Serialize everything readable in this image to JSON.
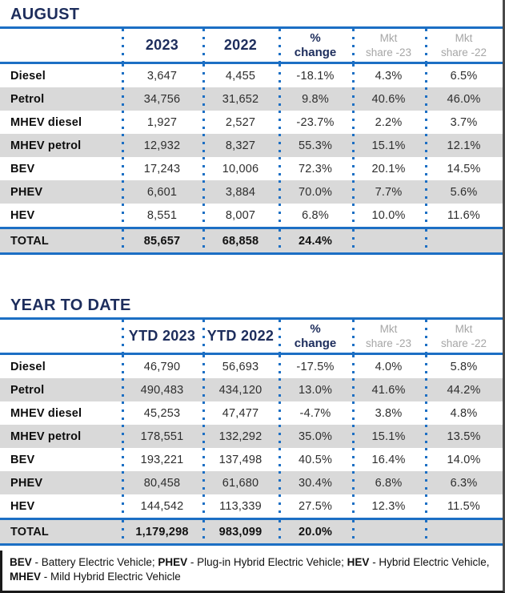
{
  "colors": {
    "accent_blue": "#1c6fc4",
    "navy_heading": "#1d2d5c",
    "row_stripe": "#d9d9d9",
    "mkt_header_gray": "#a6a6a6",
    "body_text": "#2e2e2e",
    "outer_border": "#4a4a4a"
  },
  "tables": [
    {
      "title": "AUGUST",
      "columns": [
        {
          "lines": [
            ""
          ]
        },
        {
          "lines": [
            "2023"
          ]
        },
        {
          "lines": [
            "2022"
          ]
        },
        {
          "lines": [
            "%",
            "change"
          ]
        },
        {
          "lines": [
            "Mkt",
            "share -23"
          ]
        },
        {
          "lines": [
            "Mkt",
            "share -22"
          ]
        }
      ],
      "rows": [
        [
          "Diesel",
          "3,647",
          "4,455",
          "-18.1%",
          "4.3%",
          "6.5%"
        ],
        [
          "Petrol",
          "34,756",
          "31,652",
          "9.8%",
          "40.6%",
          "46.0%"
        ],
        [
          "MHEV diesel",
          "1,927",
          "2,527",
          "-23.7%",
          "2.2%",
          "3.7%"
        ],
        [
          "MHEV petrol",
          "12,932",
          "8,327",
          "55.3%",
          "15.1%",
          "12.1%"
        ],
        [
          "BEV",
          "17,243",
          "10,006",
          "72.3%",
          "20.1%",
          "14.5%"
        ],
        [
          "PHEV",
          "6,601",
          "3,884",
          "70.0%",
          "7.7%",
          "5.6%"
        ],
        [
          "HEV",
          "8,551",
          "8,007",
          "6.8%",
          "10.0%",
          "11.6%"
        ]
      ],
      "total": [
        "TOTAL",
        "85,657",
        "68,858",
        "24.4%",
        "",
        ""
      ]
    },
    {
      "title": "YEAR TO DATE",
      "columns": [
        {
          "lines": [
            ""
          ]
        },
        {
          "lines": [
            "YTD 2023"
          ]
        },
        {
          "lines": [
            "YTD 2022"
          ]
        },
        {
          "lines": [
            "%",
            "change"
          ]
        },
        {
          "lines": [
            "Mkt",
            "share -23"
          ]
        },
        {
          "lines": [
            "Mkt",
            "share -22"
          ]
        }
      ],
      "rows": [
        [
          "Diesel",
          "46,790",
          "56,693",
          "-17.5%",
          "4.0%",
          "5.8%"
        ],
        [
          "Petrol",
          "490,483",
          "434,120",
          "13.0%",
          "41.6%",
          "44.2%"
        ],
        [
          "MHEV diesel",
          "45,253",
          "47,477",
          "-4.7%",
          "3.8%",
          "4.8%"
        ],
        [
          "MHEV petrol",
          "178,551",
          "132,292",
          "35.0%",
          "15.1%",
          "13.5%"
        ],
        [
          "BEV",
          "193,221",
          "137,498",
          "40.5%",
          "16.4%",
          "14.0%"
        ],
        [
          "PHEV",
          "80,458",
          "61,680",
          "30.4%",
          "6.8%",
          "6.3%"
        ],
        [
          "HEV",
          "144,542",
          "113,339",
          "27.5%",
          "12.3%",
          "11.5%"
        ]
      ],
      "total": [
        "TOTAL",
        "1,179,298",
        "983,099",
        "20.0%",
        "",
        ""
      ]
    }
  ],
  "footnote": {
    "segments": [
      {
        "text": "BEV",
        "bold": true
      },
      {
        "text": " - Battery Electric Vehicle; ",
        "bold": false
      },
      {
        "text": "PHEV",
        "bold": true
      },
      {
        "text": " - Plug-in Hybrid Electric Vehicle; ",
        "bold": false
      },
      {
        "text": "HEV",
        "bold": true
      },
      {
        "text": " - Hybrid Electric Vehicle,",
        "bold": false
      },
      {
        "break": true
      },
      {
        "text": "MHEV",
        "bold": true
      },
      {
        "text": " - Mild Hybrid Electric Vehicle",
        "bold": false
      }
    ]
  }
}
